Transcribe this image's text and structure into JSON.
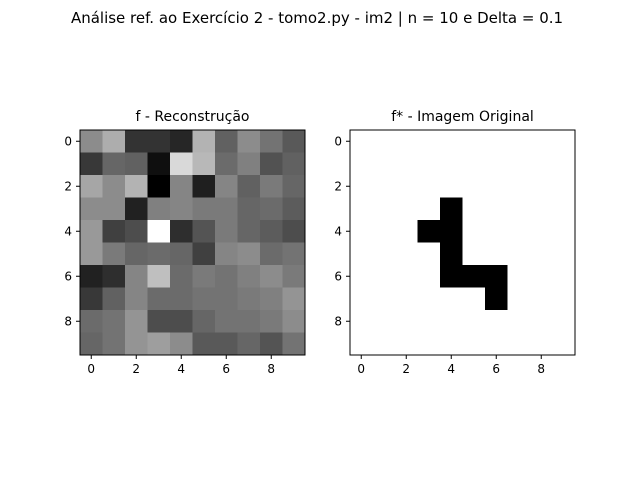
{
  "figure": {
    "suptitle": "Análise ref. ao Exercício 2 - tomo2.py - im2 | n = 10 e Delta = 0.1"
  },
  "chart_data": [
    {
      "type": "heatmap",
      "title": "f - Reconstrução",
      "colormap": "gray",
      "rows": 10,
      "cols": 10,
      "xticks": [
        0,
        2,
        4,
        6,
        8
      ],
      "yticks": [
        0,
        2,
        4,
        6,
        8
      ],
      "xlim": [
        -0.5,
        9.5
      ],
      "ylim": [
        9.5,
        -0.5
      ],
      "values": [
        [
          0.55,
          0.68,
          0.2,
          0.2,
          0.15,
          0.7,
          0.38,
          0.55,
          0.45,
          0.35
        ],
        [
          0.22,
          0.4,
          0.38,
          0.06,
          0.85,
          0.72,
          0.42,
          0.5,
          0.32,
          0.38
        ],
        [
          0.65,
          0.55,
          0.7,
          0.0,
          0.52,
          0.12,
          0.52,
          0.38,
          0.48,
          0.4
        ],
        [
          0.55,
          0.55,
          0.13,
          0.5,
          0.52,
          0.48,
          0.48,
          0.4,
          0.42,
          0.36
        ],
        [
          0.6,
          0.25,
          0.3,
          1.0,
          0.18,
          0.33,
          0.48,
          0.4,
          0.36,
          0.3
        ],
        [
          0.6,
          0.48,
          0.4,
          0.42,
          0.4,
          0.25,
          0.52,
          0.55,
          0.42,
          0.45
        ],
        [
          0.13,
          0.18,
          0.52,
          0.75,
          0.42,
          0.48,
          0.45,
          0.5,
          0.55,
          0.48
        ],
        [
          0.22,
          0.38,
          0.52,
          0.42,
          0.42,
          0.45,
          0.45,
          0.48,
          0.5,
          0.58
        ],
        [
          0.42,
          0.45,
          0.58,
          0.3,
          0.3,
          0.4,
          0.45,
          0.45,
          0.48,
          0.55
        ],
        [
          0.4,
          0.45,
          0.58,
          0.62,
          0.55,
          0.35,
          0.35,
          0.4,
          0.33,
          0.45
        ]
      ]
    },
    {
      "type": "heatmap",
      "title": "f* - Imagem Original",
      "colormap": "gray",
      "rows": 10,
      "cols": 10,
      "xticks": [
        0,
        2,
        4,
        6,
        8
      ],
      "yticks": [
        0,
        2,
        4,
        6,
        8
      ],
      "xlim": [
        -0.5,
        9.5
      ],
      "ylim": [
        9.5,
        -0.5
      ],
      "values": [
        [
          1,
          1,
          1,
          1,
          1,
          1,
          1,
          1,
          1,
          1
        ],
        [
          1,
          1,
          1,
          1,
          1,
          1,
          1,
          1,
          1,
          1
        ],
        [
          1,
          1,
          1,
          1,
          1,
          1,
          1,
          1,
          1,
          1
        ],
        [
          1,
          1,
          1,
          1,
          0,
          1,
          1,
          1,
          1,
          1
        ],
        [
          1,
          1,
          1,
          0,
          0,
          1,
          1,
          1,
          1,
          1
        ],
        [
          1,
          1,
          1,
          1,
          0,
          1,
          1,
          1,
          1,
          1
        ],
        [
          1,
          1,
          1,
          1,
          0,
          0,
          0,
          1,
          1,
          1
        ],
        [
          1,
          1,
          1,
          1,
          1,
          1,
          0,
          1,
          1,
          1
        ],
        [
          1,
          1,
          1,
          1,
          1,
          1,
          1,
          1,
          1,
          1
        ],
        [
          1,
          1,
          1,
          1,
          1,
          1,
          1,
          1,
          1,
          1
        ]
      ]
    }
  ]
}
